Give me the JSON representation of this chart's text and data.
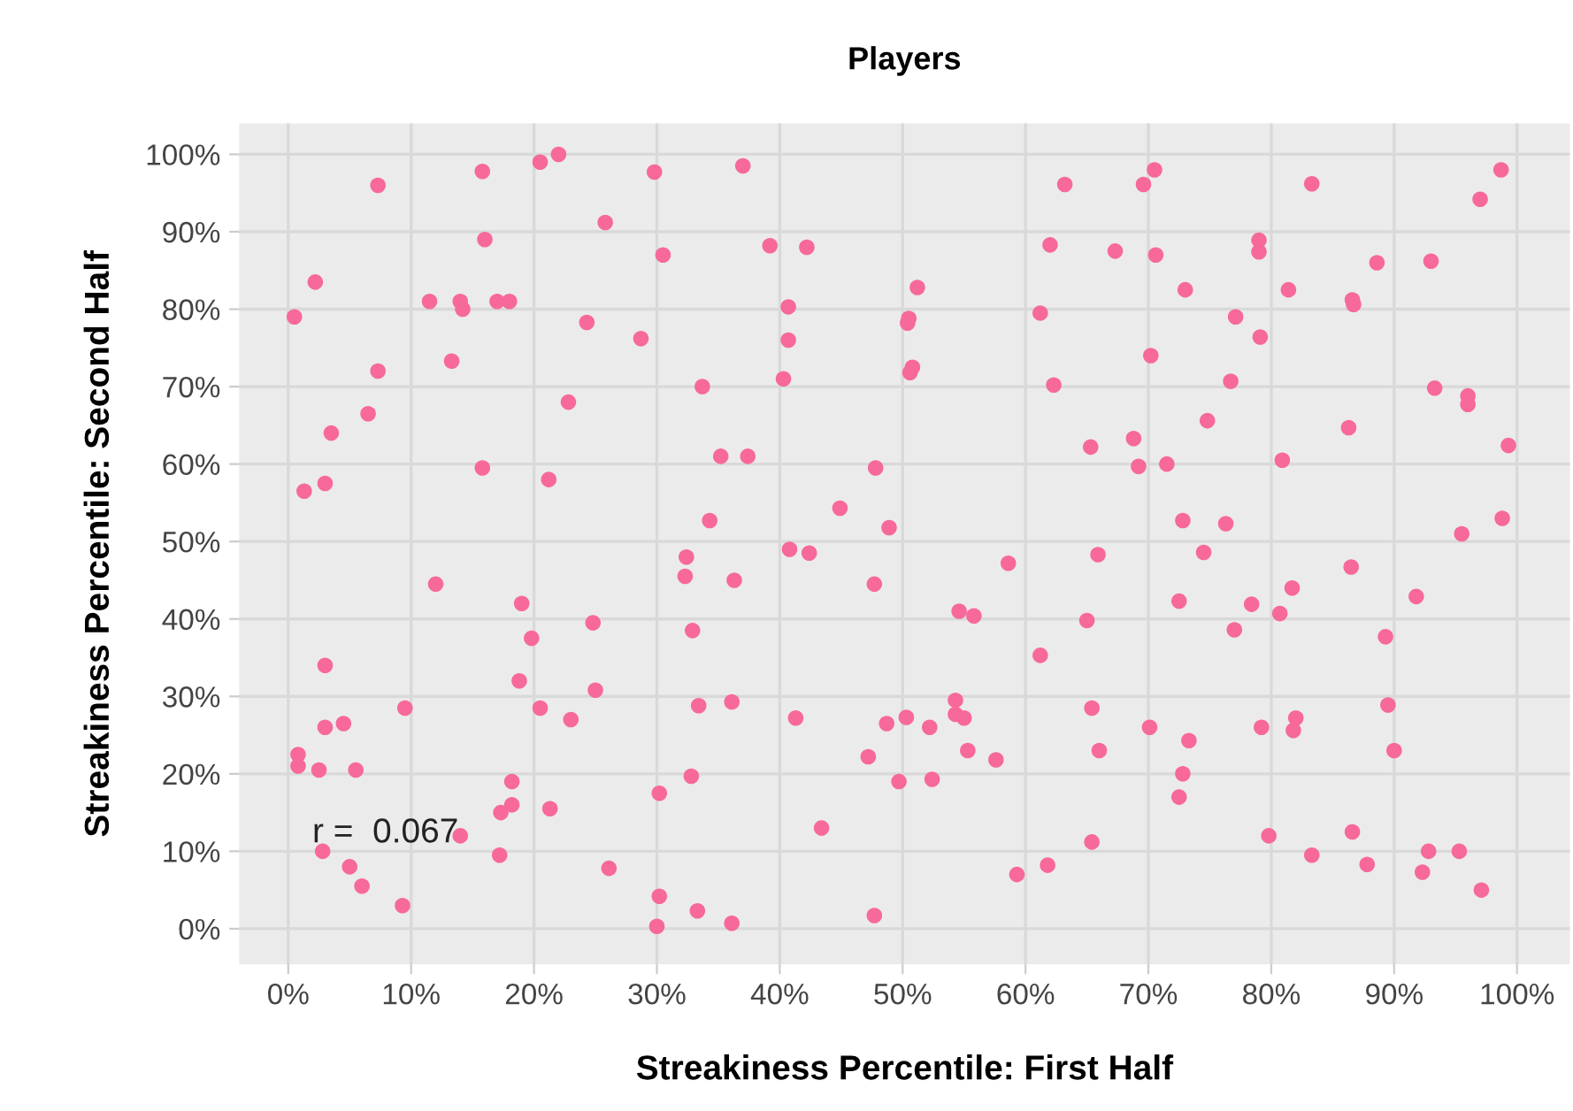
{
  "chart_data": {
    "type": "scatter",
    "title": "Players",
    "xlabel": "Streakiness Percentile: First Half",
    "ylabel": "Streakiness Percentile: Second Half",
    "annotations": [
      "r =  0.067"
    ],
    "grid": true,
    "marker": "circle",
    "xlim": [
      -4,
      104.3
    ],
    "ylim": [
      -4.6,
      104
    ],
    "xticks": [
      {
        "value": 0,
        "label": "0%"
      },
      {
        "value": 10,
        "label": "10%"
      },
      {
        "value": 20,
        "label": "20%"
      },
      {
        "value": 30,
        "label": "30%"
      },
      {
        "value": 40,
        "label": "40%"
      },
      {
        "value": 50,
        "label": "50%"
      },
      {
        "value": 60,
        "label": "60%"
      },
      {
        "value": 70,
        "label": "70%"
      },
      {
        "value": 80,
        "label": "80%"
      },
      {
        "value": 90,
        "label": "90%"
      },
      {
        "value": 100,
        "label": "100%"
      }
    ],
    "yticks": [
      {
        "value": 0,
        "label": "0%"
      },
      {
        "value": 10,
        "label": "10%"
      },
      {
        "value": 20,
        "label": "20%"
      },
      {
        "value": 30,
        "label": "30%"
      },
      {
        "value": 40,
        "label": "40%"
      },
      {
        "value": 50,
        "label": "50%"
      },
      {
        "value": 60,
        "label": "60%"
      },
      {
        "value": 70,
        "label": "70%"
      },
      {
        "value": 80,
        "label": "80%"
      },
      {
        "value": 90,
        "label": "90%"
      },
      {
        "value": 100,
        "label": "100%"
      }
    ],
    "series": [
      {
        "color": "#f7699a",
        "x": [
          0.5,
          2.2,
          1.3,
          3,
          3.5,
          6.5,
          7.3,
          7.3,
          0.8,
          0.8,
          2.5,
          3,
          3,
          4.5,
          5.5,
          2.8,
          5,
          6,
          9.3,
          9.5,
          11.5,
          13.3,
          14,
          14.2,
          12,
          14,
          15.8,
          16,
          15.8,
          17,
          18,
          17.2,
          17.3,
          18.2,
          18.2,
          18.8,
          19,
          19.8,
          20.5,
          22,
          21.2,
          20.5,
          21.3,
          22.8,
          23,
          24.3,
          24.8,
          25,
          25.8,
          26.1,
          28.7,
          29.8,
          30.2,
          30.2,
          30,
          30.5,
          32.4,
          32.3,
          32.9,
          32.8,
          33.3,
          33.7,
          33.4,
          34.3,
          35.2,
          36.1,
          36.3,
          36.1,
          37,
          37.4,
          39.2,
          40.3,
          40.7,
          40.7,
          40.8,
          41.3,
          42.2,
          42.4,
          43.4,
          44.9,
          47.2,
          47.8,
          47.7,
          47.7,
          48.7,
          48.9,
          49.7,
          50.3,
          50.4,
          50.5,
          50.6,
          50.8,
          51.2,
          52.2,
          52.4,
          54.3,
          54.3,
          54.6,
          55,
          55.3,
          55.8,
          57.6,
          58.6,
          59.3,
          61.2,
          61.2,
          61.8,
          62,
          62.3,
          63.2,
          65,
          65.3,
          65.4,
          65.4,
          65.9,
          66,
          67.3,
          68.8,
          69.2,
          69.6,
          70.5,
          70.2,
          70.1,
          70.6,
          71.5,
          72.5,
          72.5,
          72.8,
          72.8,
          73,
          73.3,
          74.5,
          74.8,
          76.3,
          76.7,
          77.1,
          77,
          78.4,
          79,
          79,
          79.1,
          79.2,
          79.8,
          80.7,
          80.9,
          81.4,
          81.7,
          81.8,
          82,
          83.3,
          83.3,
          86.3,
          86.5,
          86.6,
          86.7,
          86.6,
          87.8,
          88.6,
          89.3,
          89.5,
          90,
          91.8,
          92.3,
          92.8,
          93,
          93.3,
          95.3,
          95.5,
          96,
          96,
          97,
          97.1,
          98.7,
          98.8,
          99.3
        ],
        "values": [
          79,
          83.5,
          56.5,
          57.5,
          64,
          66.5,
          72,
          96,
          22.5,
          21,
          20.5,
          34,
          26,
          26.5,
          20.5,
          10,
          8,
          5.5,
          3,
          28.5,
          81,
          73.3,
          81,
          80,
          44.5,
          12,
          97.8,
          89,
          59.5,
          81,
          81,
          9.5,
          15,
          16,
          19,
          32,
          42,
          37.5,
          99,
          100,
          58,
          28.5,
          15.5,
          68,
          27,
          78.3,
          39.5,
          30.8,
          91.2,
          7.8,
          76.2,
          97.7,
          17.5,
          4.2,
          0.3,
          87,
          48,
          45.5,
          38.5,
          19.7,
          2.3,
          70,
          28.8,
          52.7,
          61,
          29.3,
          45,
          0.7,
          98.5,
          61,
          88.2,
          71,
          80.3,
          76,
          49,
          27.2,
          88,
          48.5,
          13,
          54.3,
          22.2,
          59.5,
          1.7,
          44.5,
          26.5,
          51.8,
          19,
          27.3,
          78.2,
          78.8,
          71.8,
          72.5,
          82.8,
          26,
          19.3,
          29.5,
          27.7,
          41,
          27.2,
          23,
          40.4,
          21.8,
          47.2,
          7,
          79.5,
          35.3,
          8.2,
          88.3,
          70.2,
          96.1,
          39.8,
          62.2,
          11.2,
          28.5,
          48.3,
          23,
          87.5,
          63.3,
          59.7,
          96.1,
          98,
          74,
          26,
          87,
          60,
          42.3,
          17,
          52.7,
          20,
          82.5,
          24.3,
          48.6,
          65.6,
          52.3,
          70.7,
          79,
          38.6,
          41.9,
          87.4,
          88.9,
          76.4,
          26,
          12,
          40.7,
          60.5,
          82.5,
          44,
          25.6,
          27.2,
          96.2,
          9.5,
          64.7,
          46.7,
          81.2,
          80.6,
          12.5,
          8.3,
          86,
          37.7,
          28.9,
          23,
          42.9,
          7.3,
          10,
          86.2,
          69.8,
          10,
          51,
          68.8,
          67.7,
          94.2,
          5,
          98,
          53,
          62.4
        ]
      }
    ]
  }
}
